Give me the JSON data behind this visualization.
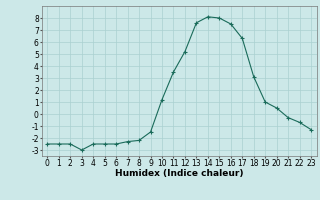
{
  "x": [
    0,
    1,
    2,
    3,
    4,
    5,
    6,
    7,
    8,
    9,
    10,
    11,
    12,
    13,
    14,
    15,
    16,
    17,
    18,
    19,
    20,
    21,
    22,
    23
  ],
  "y": [
    -2.5,
    -2.5,
    -2.5,
    -3.0,
    -2.5,
    -2.5,
    -2.5,
    -2.3,
    -2.2,
    -1.5,
    1.2,
    3.5,
    5.2,
    7.6,
    8.1,
    8.0,
    7.5,
    6.3,
    3.1,
    1.0,
    0.5,
    -0.3,
    -0.7,
    -1.3
  ],
  "xlabel": "Humidex (Indice chaleur)",
  "xlim": [
    -0.5,
    23.5
  ],
  "ylim": [
    -3.5,
    9.0
  ],
  "yticks": [
    -3,
    -2,
    -1,
    0,
    1,
    2,
    3,
    4,
    5,
    6,
    7,
    8
  ],
  "xticks": [
    0,
    1,
    2,
    3,
    4,
    5,
    6,
    7,
    8,
    9,
    10,
    11,
    12,
    13,
    14,
    15,
    16,
    17,
    18,
    19,
    20,
    21,
    22,
    23
  ],
  "line_color": "#1a6b5a",
  "marker": "+",
  "bg_color": "#cce8e8",
  "grid_color": "#aad0d0",
  "label_fontsize": 6.5,
  "tick_fontsize": 5.5
}
